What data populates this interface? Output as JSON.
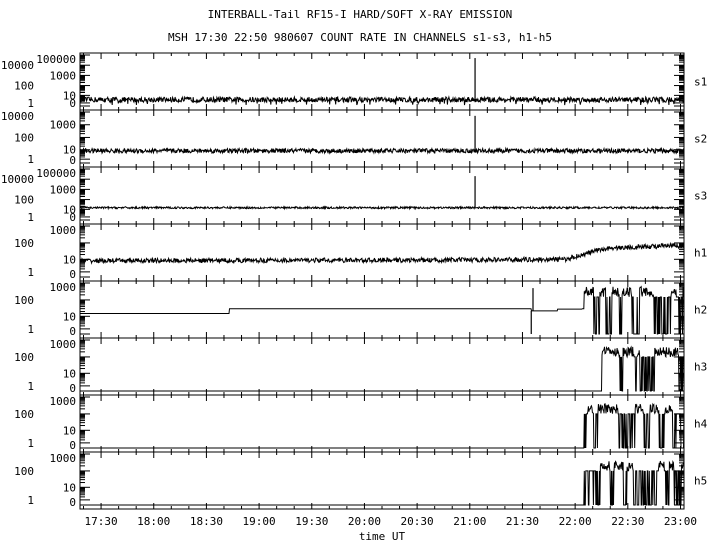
{
  "chart_data": {
    "type": "line",
    "title": "INTERBALL-Tail RF15-I HARD/SOFT X-RAY EMISSION",
    "subtitle": "MSH 17:30 22:50 980607  COUNT RATE IN CHANNELS s1-s3, h1-h5",
    "xlabel": "time UT",
    "xlim": [
      "17:18",
      "23:02"
    ],
    "x_ticks": [
      "17:30",
      "18:00",
      "18:30",
      "19:00",
      "19:30",
      "20:00",
      "20:30",
      "21:00",
      "21:30",
      "22:00",
      "22:30",
      "23:00"
    ],
    "y_scale": "log",
    "grid": false,
    "line_color": "#000000",
    "panels": [
      {
        "name": "s1",
        "yticks": [
          "0",
          "1",
          "10",
          "100",
          "1000",
          "10000",
          "100000"
        ],
        "ymax": 100000,
        "baseline": [
          [
            "17:18",
            3
          ],
          [
            "23:02",
            3
          ]
        ],
        "noise": 0.35,
        "dropouts": true,
        "spikes": [
          [
            "21:03",
            50000
          ]
        ]
      },
      {
        "name": "s2",
        "yticks": [
          "0",
          "1",
          "10",
          "100",
          "1000",
          "10000"
        ],
        "ymax": 10000,
        "baseline": [
          [
            "17:18",
            8
          ],
          [
            "23:02",
            8
          ]
        ],
        "noise": 0.2,
        "dropouts": false,
        "spikes": [
          [
            "21:03",
            5000
          ]
        ]
      },
      {
        "name": "s3",
        "yticks": [
          "0",
          "1",
          "10",
          "100",
          "1000",
          "10000",
          "100000"
        ],
        "ymax": 100000,
        "baseline": [
          [
            "17:18",
            15
          ],
          [
            "23:02",
            15
          ]
        ],
        "noise": 0.1,
        "dropouts": false,
        "spikes": [
          [
            "21:03",
            20000
          ]
        ]
      },
      {
        "name": "h1",
        "yticks": [
          "0",
          "1",
          "10",
          "100",
          "1000"
        ],
        "ymax": 1000,
        "baseline": [
          [
            "17:18",
            8
          ],
          [
            "21:00",
            9
          ],
          [
            "21:55",
            10
          ],
          [
            "22:05",
            20
          ],
          [
            "22:20",
            50
          ],
          [
            "23:02",
            70
          ]
        ],
        "noise": 0.15,
        "dropouts": false,
        "spikes": []
      },
      {
        "name": "h2",
        "yticks": [
          "0",
          "1",
          "10",
          "100",
          "1000"
        ],
        "ymax": 1000,
        "steps": [
          [
            "17:18",
            15
          ],
          [
            "18:43",
            30
          ],
          [
            "21:35",
            22
          ],
          [
            "21:50",
            28
          ],
          [
            "22:04",
            30
          ]
        ],
        "spikes": [
          [
            "21:35",
            0
          ],
          [
            "21:36",
            500
          ]
        ],
        "bursts": {
          "start": "22:05",
          "level": 300,
          "floor": 0
        }
      },
      {
        "name": "h3",
        "yticks": [
          "0",
          "1",
          "10",
          "100",
          "1000"
        ],
        "ymax": 1000,
        "steps": [
          [
            "17:18",
            0
          ]
        ],
        "spikes": [],
        "bursts": {
          "start": "22:15",
          "level": 200,
          "floor": 0
        }
      },
      {
        "name": "h4",
        "yticks": [
          "0",
          "1",
          "10",
          "100",
          "1000"
        ],
        "ymax": 1000,
        "steps": [
          [
            "17:18",
            0
          ]
        ],
        "spikes": [],
        "bursts": {
          "start": "22:05",
          "level": 200,
          "floor": 0
        }
      },
      {
        "name": "h5",
        "yticks": [
          "0",
          "1",
          "10",
          "100",
          "1000"
        ],
        "ymax": 1000,
        "steps": [
          [
            "17:18",
            0
          ]
        ],
        "spikes": [],
        "bursts": {
          "start": "22:05",
          "level": 200,
          "floor": 0
        }
      }
    ]
  }
}
